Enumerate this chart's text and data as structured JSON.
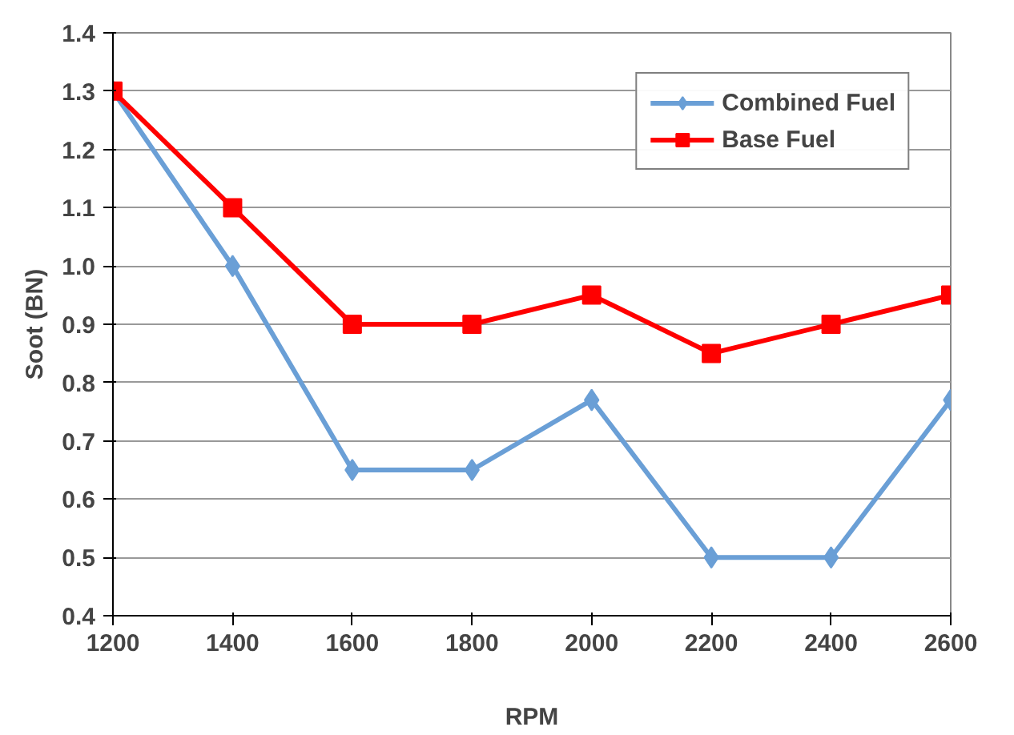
{
  "chart_data": {
    "type": "line",
    "xlabel": "RPM",
    "ylabel": "Soot (BN)",
    "x": [
      1200,
      1400,
      1600,
      1800,
      2000,
      2200,
      2400,
      2600
    ],
    "series": [
      {
        "name": "Combined Fuel",
        "color": "#6a9fd6",
        "marker": "diamond",
        "values": [
          1.3,
          1.0,
          0.65,
          0.65,
          0.77,
          0.5,
          0.5,
          0.77
        ]
      },
      {
        "name": "Base Fuel",
        "color": "#ff0000",
        "marker": "square",
        "values": [
          1.3,
          1.1,
          0.9,
          0.9,
          0.95,
          0.85,
          0.9,
          0.95
        ]
      }
    ],
    "xlim": [
      1200,
      2600
    ],
    "xticks": [
      1200,
      1400,
      1600,
      1800,
      2000,
      2200,
      2400,
      2600
    ],
    "ylim": [
      0.4,
      1.4
    ],
    "yticks": [
      0.4,
      0.5,
      0.6,
      0.7,
      0.8,
      0.9,
      {
        "value": 1.0,
        "label": "1.0"
      },
      1.1,
      1.2,
      1.3,
      1.4
    ],
    "grid": "y",
    "legend": "top right"
  }
}
